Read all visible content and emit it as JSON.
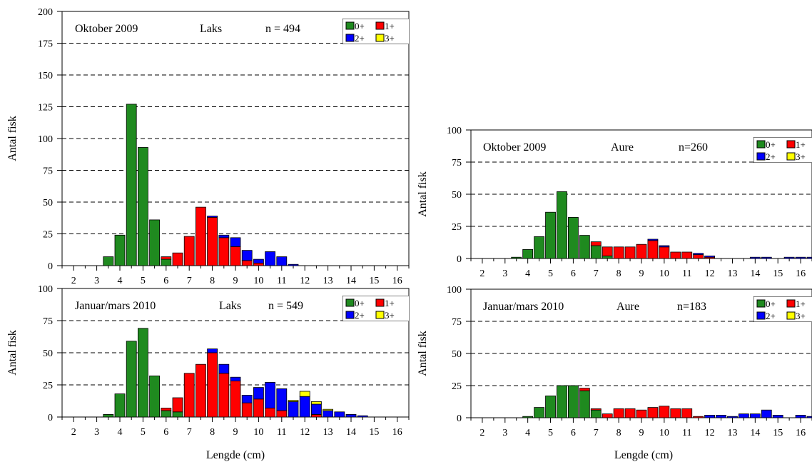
{
  "colors": {
    "0+": "#1f8a1f",
    "1+": "#ff0000",
    "2+": "#0000ff",
    "3+": "#ffff00"
  },
  "chart_data": [
    {
      "type": "bar",
      "subtype": "stacked-histogram",
      "period": "Oktober 2009",
      "species": "Laks",
      "n_label": "n = 494",
      "ylabel": "Antal fisk",
      "xlabel": "",
      "ylim": [
        0,
        200
      ],
      "yticks": [
        "0",
        "25",
        "50",
        "75",
        "100",
        "125",
        "150",
        "175",
        "200"
      ],
      "xlim": [
        1.5,
        16.5
      ],
      "xticks": [
        "2",
        "3",
        "4",
        "5",
        "6",
        "7",
        "8",
        "9",
        "10",
        "11",
        "12",
        "13",
        "14",
        "15",
        "16"
      ],
      "legend": [
        "0+",
        "1+",
        "2+",
        "3+"
      ],
      "legend_position": "top-right",
      "grid": "dashed horizontal",
      "x": [
        3.5,
        4,
        4.5,
        5,
        5.5,
        6,
        6.5,
        7,
        7.5,
        8,
        8.5,
        9,
        9.5,
        10,
        10.5,
        11,
        11.5
      ],
      "series": [
        {
          "name": "0+",
          "values": [
            7,
            24,
            127,
            93,
            36,
            5,
            0,
            0,
            0,
            0,
            0,
            0,
            0,
            0,
            0,
            0,
            0
          ]
        },
        {
          "name": "1+",
          "values": [
            0,
            0,
            0,
            0,
            0,
            2,
            10,
            23,
            46,
            38,
            22,
            15,
            4,
            2,
            0,
            0,
            0
          ]
        },
        {
          "name": "2+",
          "values": [
            0,
            0,
            0,
            0,
            0,
            0,
            0,
            0,
            0,
            1,
            2,
            7,
            8,
            3,
            11,
            7,
            1
          ]
        },
        {
          "name": "3+",
          "values": [
            0,
            0,
            0,
            0,
            0,
            0,
            0,
            0,
            0,
            0,
            0,
            0,
            0,
            0,
            0,
            0,
            0
          ]
        }
      ]
    },
    {
      "type": "bar",
      "subtype": "stacked-histogram",
      "period": "Januar/mars 2010",
      "species": "Laks",
      "n_label": "n = 549",
      "ylabel": "Antal fisk",
      "xlabel": "Lengde (cm)",
      "ylim": [
        0,
        100
      ],
      "yticks": [
        "0",
        "25",
        "50",
        "75",
        "100"
      ],
      "xlim": [
        1.5,
        16.5
      ],
      "xticks": [
        "2",
        "3",
        "4",
        "5",
        "6",
        "7",
        "8",
        "9",
        "10",
        "11",
        "12",
        "13",
        "14",
        "15",
        "16"
      ],
      "legend": [
        "0+",
        "1+",
        "2+",
        "3+"
      ],
      "legend_position": "top-right",
      "grid": "dashed horizontal",
      "x": [
        3.5,
        4,
        4.5,
        5,
        5.5,
        6,
        6.5,
        7,
        7.5,
        8,
        8.5,
        9,
        9.5,
        10,
        10.5,
        11,
        11.5,
        12,
        12.5,
        13,
        13.5,
        14,
        14.5
      ],
      "series": [
        {
          "name": "0+",
          "values": [
            2,
            18,
            59,
            69,
            32,
            5,
            4,
            0,
            0,
            0,
            0,
            0,
            0,
            0,
            0,
            0,
            0,
            0,
            0,
            0,
            0,
            0,
            0
          ]
        },
        {
          "name": "1+",
          "values": [
            0,
            0,
            0,
            0,
            0,
            2,
            11,
            34,
            41,
            50,
            34,
            28,
            11,
            14,
            7,
            5,
            0,
            0,
            2,
            0,
            0,
            0,
            0
          ]
        },
        {
          "name": "2+",
          "values": [
            0,
            0,
            0,
            0,
            0,
            0,
            0,
            0,
            0,
            3,
            7,
            3,
            6,
            9,
            20,
            17,
            12,
            16,
            8,
            5,
            4,
            2,
            1
          ]
        },
        {
          "name": "3+",
          "values": [
            0,
            0,
            0,
            0,
            0,
            0,
            0,
            0,
            0,
            0,
            0,
            0,
            0,
            0,
            0,
            0,
            1,
            4,
            2,
            1,
            0,
            0,
            0
          ]
        }
      ]
    },
    {
      "type": "bar",
      "subtype": "stacked-histogram",
      "period": "Oktober 2009",
      "species": "Aure",
      "n_label": "n=260",
      "ylabel": "Antal fisk",
      "xlabel": "",
      "ylim": [
        0,
        100
      ],
      "yticks": [
        "0",
        "25",
        "50",
        "75",
        "100"
      ],
      "xlim": [
        1.5,
        16.5
      ],
      "xticks": [
        "2",
        "3",
        "4",
        "5",
        "6",
        "7",
        "8",
        "9",
        "10",
        "11",
        "12",
        "13",
        "14",
        "15",
        "16"
      ],
      "legend": [
        "0+",
        "1+",
        "2+",
        "3+"
      ],
      "legend_position": "top-right",
      "grid": "dashed horizontal",
      "x": [
        3.5,
        4,
        4.5,
        5,
        5.5,
        6,
        6.5,
        7,
        7.5,
        8,
        8.5,
        9,
        9.5,
        10,
        10.5,
        11,
        11.5,
        12,
        14,
        14.5,
        15.5,
        16,
        16.5
      ],
      "series": [
        {
          "name": "0+",
          "values": [
            1,
            7,
            17,
            36,
            52,
            32,
            18,
            10,
            2,
            0,
            0,
            0,
            0,
            0,
            0,
            0,
            0,
            0,
            0,
            0,
            0,
            0,
            0
          ]
        },
        {
          "name": "1+",
          "values": [
            0,
            0,
            0,
            0,
            0,
            0,
            0,
            3,
            7,
            9,
            9,
            11,
            14,
            9,
            5,
            5,
            3,
            1,
            0,
            0,
            0,
            0,
            0
          ]
        },
        {
          "name": "2+",
          "values": [
            0,
            0,
            0,
            0,
            0,
            0,
            0,
            0,
            0,
            0,
            0,
            0,
            1,
            1,
            0,
            0,
            1,
            1,
            1,
            1,
            1,
            1,
            1
          ]
        },
        {
          "name": "3+",
          "values": [
            0,
            0,
            0,
            0,
            0,
            0,
            0,
            0,
            0,
            0,
            0,
            0,
            0,
            0,
            0,
            0,
            0,
            0,
            0,
            0,
            0,
            0,
            0
          ]
        }
      ]
    },
    {
      "type": "bar",
      "subtype": "stacked-histogram",
      "period": "Januar/mars 2010",
      "species": "Aure",
      "n_label": "n=183",
      "ylabel": "Antal fisk",
      "xlabel": "Lengde (cm)",
      "ylim": [
        0,
        100
      ],
      "yticks": [
        "0",
        "25",
        "50",
        "75",
        "100"
      ],
      "xlim": [
        1.5,
        16.5
      ],
      "xticks": [
        "2",
        "3",
        "4",
        "5",
        "6",
        "7",
        "8",
        "9",
        "10",
        "11",
        "12",
        "13",
        "14",
        "15",
        "16"
      ],
      "legend": [
        "0+",
        "1+",
        "2+",
        "3+"
      ],
      "legend_position": "top-right",
      "grid": "dashed horizontal",
      "x": [
        3.5,
        4,
        4.5,
        5,
        5.5,
        6,
        6.5,
        7,
        7.5,
        8,
        8.5,
        9,
        9.5,
        10,
        10.5,
        11,
        11.5,
        12,
        12.5,
        13,
        13.5,
        14,
        14.5,
        15,
        16,
        16.5
      ],
      "series": [
        {
          "name": "0+",
          "values": [
            0,
            1,
            8,
            17,
            25,
            25,
            21,
            6,
            0,
            0,
            0,
            0,
            0,
            0,
            0,
            0,
            0,
            0,
            0,
            0,
            0,
            0,
            0,
            0,
            0,
            0
          ]
        },
        {
          "name": "1+",
          "values": [
            0,
            0,
            0,
            0,
            0,
            0,
            2,
            1,
            3,
            7,
            7,
            6,
            8,
            9,
            7,
            7,
            1,
            0,
            0,
            0,
            0,
            0,
            0,
            0,
            0,
            0
          ]
        },
        {
          "name": "2+",
          "values": [
            0,
            0,
            0,
            0,
            0,
            0,
            0,
            0,
            0,
            0,
            0,
            0,
            0,
            0,
            0,
            0,
            0,
            2,
            2,
            1,
            3,
            3,
            6,
            2,
            2,
            1
          ]
        },
        {
          "name": "3+",
          "values": [
            0,
            0,
            0,
            0,
            0,
            0,
            0,
            0,
            0,
            0,
            0,
            0,
            0,
            0,
            0,
            0,
            0,
            0,
            0,
            0,
            0,
            0,
            0,
            0,
            0,
            0
          ]
        }
      ]
    }
  ]
}
